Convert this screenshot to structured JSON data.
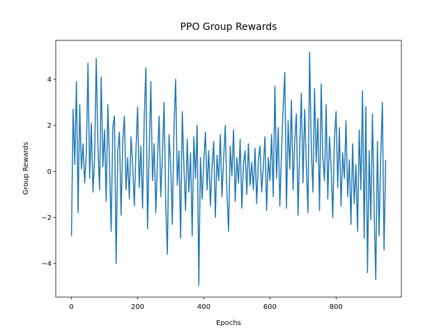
{
  "chart_data": {
    "type": "line",
    "title": "PPO Group Rewards",
    "x_label": "Epochs",
    "y_label": "Group Rewards",
    "color": "#1f77b4",
    "x": [
      0,
      5,
      10,
      15,
      20,
      25,
      30,
      35,
      40,
      45,
      50,
      55,
      60,
      65,
      70,
      75,
      80,
      85,
      90,
      95,
      100,
      105,
      110,
      115,
      120,
      125,
      130,
      135,
      140,
      145,
      150,
      155,
      160,
      165,
      170,
      175,
      180,
      185,
      190,
      195,
      200,
      205,
      210,
      215,
      220,
      225,
      230,
      235,
      240,
      245,
      250,
      255,
      260,
      265,
      270,
      275,
      280,
      285,
      290,
      295,
      300,
      305,
      310,
      315,
      320,
      325,
      330,
      335,
      340,
      345,
      350,
      355,
      360,
      365,
      370,
      375,
      380,
      385,
      390,
      395,
      400,
      405,
      410,
      415,
      420,
      425,
      430,
      435,
      440,
      445,
      450,
      455,
      460,
      465,
      470,
      475,
      480,
      485,
      490,
      495,
      500,
      505,
      510,
      515,
      520,
      525,
      530,
      535,
      540,
      545,
      550,
      555,
      560,
      565,
      570,
      575,
      580,
      585,
      590,
      595,
      600,
      605,
      610,
      615,
      620,
      625,
      630,
      635,
      640,
      645,
      650,
      655,
      660,
      665,
      670,
      675,
      680,
      685,
      690,
      695,
      700,
      705,
      710,
      715,
      720,
      725,
      730,
      735,
      740,
      745,
      750,
      755,
      760,
      765,
      770,
      775,
      780,
      785,
      790,
      795,
      800,
      805,
      810,
      815,
      820,
      825,
      830,
      835,
      840,
      845,
      850,
      855,
      860,
      865,
      870,
      875,
      880,
      885,
      890,
      895,
      900,
      905,
      910,
      915,
      920,
      925,
      930,
      935,
      940,
      945,
      950
    ],
    "values": [
      -2.8,
      2.7,
      0.3,
      3.9,
      -1.8,
      2.9,
      0.1,
      1.2,
      -0.5,
      0.8,
      4.7,
      -0.3,
      2.1,
      -0.9,
      0.6,
      4.9,
      1.1,
      -0.8,
      4.1,
      0.2,
      1.8,
      -1.3,
      2.9,
      0.4,
      -2.6,
      1.9,
      2.4,
      -4.0,
      0.9,
      1.7,
      -1.9,
      1.3,
      2.4,
      -0.8,
      0.6,
      -1.2,
      1.5,
      0.3,
      -1.5,
      0.9,
      2.8,
      -0.7,
      1.1,
      -1.6,
      2.3,
      4.5,
      -2.5,
      0.8,
      3.9,
      -0.4,
      1.2,
      -1.8,
      0.5,
      2.4,
      -1.1,
      0.7,
      3.0,
      -1.4,
      -3.6,
      1.6,
      0.3,
      -2.3,
      1.9,
      4.0,
      -0.6,
      0.9,
      -2.9,
      2.6,
      0.2,
      -1.7,
      1.4,
      -0.9,
      0.8,
      -2.8,
      1.5,
      -0.3,
      2.0,
      -4.95,
      0.6,
      -1.2,
      0.4,
      1.7,
      -0.8,
      0.9,
      -1.5,
      0.2,
      1.3,
      -2.0,
      0.7,
      -0.4,
      1.6,
      -1.1,
      0.5,
      2.0,
      -0.9,
      -2.6,
      1.1,
      -0.2,
      1.8,
      -1.3,
      0.6,
      -0.5,
      1.4,
      -1.6,
      0.3,
      0.9,
      -1.0,
      1.2,
      -0.6,
      0.4,
      -0.8,
      1.0,
      -1.4,
      0.5,
      1.1,
      -0.9,
      0.2,
      1.5,
      -1.7,
      0.6,
      -0.4,
      1.6,
      -1.1,
      3.7,
      -0.3,
      1.9,
      -1.5,
      0.8,
      2.8,
      4.3,
      -1.6,
      2.2,
      0.1,
      3.1,
      -0.8,
      1.3,
      2.5,
      -1.9,
      1.0,
      3.4,
      -0.5,
      2.7,
      0.3,
      -1.8,
      5.18,
      1.1,
      -0.9,
      3.6,
      0.4,
      2.3,
      -1.7,
      3.8,
      0.6,
      -0.4,
      2.9,
      -1.2,
      1.5,
      0.2,
      -2.0,
      1.4,
      2.6,
      -0.7,
      1.9,
      -1.5,
      0.8,
      -0.3,
      2.2,
      -1.1,
      0.5,
      -2.3,
      1.2,
      -1.4,
      0.3,
      -2.6,
      1.8,
      -0.8,
      3.5,
      -2.9,
      2.8,
      -4.4,
      0.9,
      -2.1,
      2.5,
      -1.6,
      -4.7,
      1.3,
      -2.8,
      0.6,
      3.0,
      -3.4,
      0.5
    ],
    "xlim": [
      -47.5,
      997.5
    ],
    "ylim": [
      -5.46,
      5.69
    ],
    "xticks": [
      0,
      200,
      400,
      600,
      800
    ],
    "yticks": [
      {
        "value": -4,
        "label": "−4"
      },
      {
        "value": -2,
        "label": "−2"
      },
      0,
      2,
      4
    ]
  }
}
